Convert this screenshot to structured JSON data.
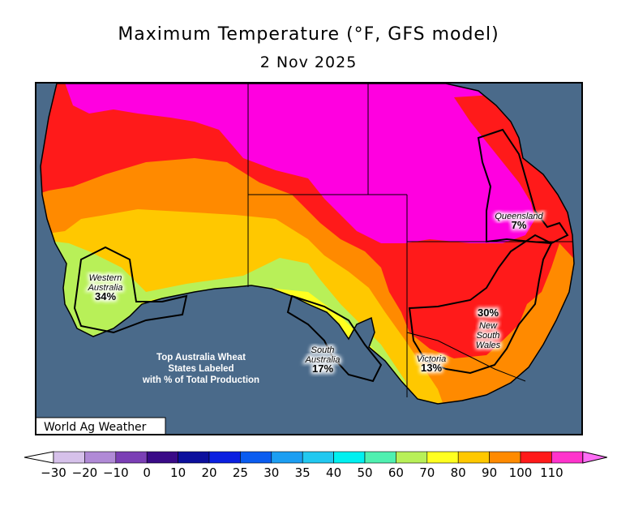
{
  "title": "Maximum Temperature (°F, GFS model)",
  "date": "2 Nov 2025",
  "credit": "World Ag Weather",
  "info_box": [
    "Top Australia Wheat",
    "States Labeled",
    "with % of Total Production"
  ],
  "states": [
    {
      "name_lines": [
        "Western",
        "Australia"
      ],
      "pct": "34%"
    },
    {
      "name_lines": [
        "South",
        "Australia"
      ],
      "pct": "17%"
    },
    {
      "name_lines": [
        "Victoria"
      ],
      "pct": "13%"
    },
    {
      "name_lines": [
        "New",
        "South",
        "Wales"
      ],
      "pct": "30%"
    },
    {
      "name_lines": [
        "Queensland"
      ],
      "pct": "7%"
    }
  ],
  "legend": {
    "ticks": [
      "−30",
      "−20",
      "−10",
      "0",
      "10",
      "20",
      "25",
      "30",
      "35",
      "40",
      "50",
      "60",
      "70",
      "80",
      "90",
      "100",
      "110"
    ],
    "colors": [
      "#d6c1ea",
      "#b08ad6",
      "#7b3fb5",
      "#3a0a87",
      "#0c0f9c",
      "#0a1fe0",
      "#0a5cf0",
      "#1c9ef2",
      "#22c8f0",
      "#00f0f0",
      "#4ff0b0",
      "#b8f058",
      "#ffff20",
      "#ffc800",
      "#ff8a00",
      "#ff1a1a",
      "#ff33cc"
    ],
    "low_color": "#ffffff",
    "high_color": "#ff6ef5"
  },
  "colors": {
    "ocean": "#4a6a8a",
    "t60": "#b8f058",
    "t70": "#ffff20",
    "t80": "#ffc800",
    "t90": "#ff8a00",
    "t100": "#ff1a1a",
    "t110": "#ff00e0"
  }
}
